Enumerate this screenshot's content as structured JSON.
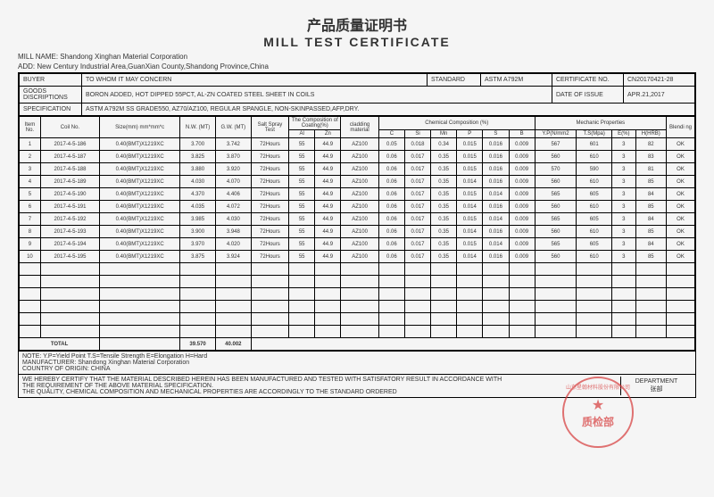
{
  "title_cn": "产品质量证明书",
  "title_en": "MILL TEST CERTIFICATE",
  "mill_name_label": "MILL NAME:",
  "mill_name": "Shandong Xinghan Material Corporation",
  "add_label": "ADD:",
  "address": "New Century Industrial Area,GuanXian County,Shandong Province,China",
  "header": {
    "buyer_label": "BUYER",
    "buyer": "TO WHOM IT MAY CONCERN",
    "standard_label": "STANDARD",
    "standard": "ASTM A792M",
    "cert_no_label": "CERTIFICATE NO.",
    "cert_no": "CN20170421-28",
    "goods_label": "GOODS DISCRIPTIONS",
    "goods": "BORON ADDED, HOT DIPPED 55PCT, AL-ZN COATED STEEL SHEET IN COILS",
    "date_label": "DATE OF ISSUE",
    "date": "APR.21,2017",
    "spec_label": "SPECIFICATION",
    "spec": "ASTM A792M SS GRADE550, AZ70/AZ100, REGULAR SPANGLE, NON-SKINPASSED,AFP,DRY."
  },
  "columns": {
    "item_no": "Item No.",
    "coil_no": "Coil No.",
    "size": "Size(mm) mm*mm*c",
    "nw": "N.W. (MT)",
    "gw": "G.W. (MT)",
    "salt": "Salt Spray Test",
    "comp_coating": "The Composition of Coating(%)",
    "al": "Al",
    "zn": "Zn",
    "cladding": "cladding material",
    "chem": "Chemical Composition (%)",
    "c": "C",
    "si": "Si",
    "mn": "Mn",
    "p": "P",
    "s": "S",
    "b": "B",
    "mech": "Mechanic Properties",
    "yp": "Y.P(N/mm2",
    "ts": "T.S(Mpa)",
    "e": "E(%)",
    "h": "H(HRB)",
    "blend": "Blendi ng"
  },
  "rows": [
    {
      "n": "1",
      "coil": "2017-4-5-186",
      "size": "0.40(BMT)X1219XC",
      "nw": "3.700",
      "gw": "3.742",
      "salt": "72Hours",
      "al": "55",
      "zn": "44.9",
      "clad": "AZ100",
      "c": "0.05",
      "si": "0.018",
      "mn": "0.34",
      "p": "0.015",
      "s": "0.016",
      "b": "0.009",
      "yp": "567",
      "ts": "601",
      "e": "3",
      "h": "82",
      "bl": "OK"
    },
    {
      "n": "2",
      "coil": "2017-4-5-187",
      "size": "0.40(BMT)X1219XC",
      "nw": "3.825",
      "gw": "3.870",
      "salt": "72Hours",
      "al": "55",
      "zn": "44.9",
      "clad": "AZ100",
      "c": "0.06",
      "si": "0.017",
      "mn": "0.35",
      "p": "0.015",
      "s": "0.016",
      "b": "0.009",
      "yp": "560",
      "ts": "610",
      "e": "3",
      "h": "83",
      "bl": "OK"
    },
    {
      "n": "3",
      "coil": "2017-4-5-188",
      "size": "0.40(BMT)X1219XC",
      "nw": "3.880",
      "gw": "3.920",
      "salt": "72Hours",
      "al": "55",
      "zn": "44.9",
      "clad": "AZ100",
      "c": "0.06",
      "si": "0.017",
      "mn": "0.35",
      "p": "0.015",
      "s": "0.016",
      "b": "0.009",
      "yp": "570",
      "ts": "590",
      "e": "3",
      "h": "81",
      "bl": "OK"
    },
    {
      "n": "4",
      "coil": "2017-4-5-189",
      "size": "0.40(BMT)X1219XC",
      "nw": "4.030",
      "gw": "4.070",
      "salt": "72Hours",
      "al": "55",
      "zn": "44.9",
      "clad": "AZ100",
      "c": "0.06",
      "si": "0.017",
      "mn": "0.35",
      "p": "0.014",
      "s": "0.016",
      "b": "0.009",
      "yp": "560",
      "ts": "610",
      "e": "3",
      "h": "85",
      "bl": "OK"
    },
    {
      "n": "5",
      "coil": "2017-4-5-190",
      "size": "0.40(BMT)X1219XC",
      "nw": "4.370",
      "gw": "4.406",
      "salt": "72Hours",
      "al": "55",
      "zn": "44.9",
      "clad": "AZ100",
      "c": "0.06",
      "si": "0.017",
      "mn": "0.35",
      "p": "0.015",
      "s": "0.014",
      "b": "0.009",
      "yp": "565",
      "ts": "605",
      "e": "3",
      "h": "84",
      "bl": "OK"
    },
    {
      "n": "6",
      "coil": "2017-4-5-191",
      "size": "0.40(BMT)X1219XC",
      "nw": "4.035",
      "gw": "4.072",
      "salt": "72Hours",
      "al": "55",
      "zn": "44.9",
      "clad": "AZ100",
      "c": "0.06",
      "si": "0.017",
      "mn": "0.35",
      "p": "0.014",
      "s": "0.016",
      "b": "0.009",
      "yp": "560",
      "ts": "610",
      "e": "3",
      "h": "85",
      "bl": "OK"
    },
    {
      "n": "7",
      "coil": "2017-4-5-192",
      "size": "0.40(BMT)X1219XC",
      "nw": "3.985",
      "gw": "4.030",
      "salt": "72Hours",
      "al": "55",
      "zn": "44.9",
      "clad": "AZ100",
      "c": "0.06",
      "si": "0.017",
      "mn": "0.35",
      "p": "0.015",
      "s": "0.014",
      "b": "0.009",
      "yp": "565",
      "ts": "605",
      "e": "3",
      "h": "84",
      "bl": "OK"
    },
    {
      "n": "8",
      "coil": "2017-4-5-193",
      "size": "0.40(BMT)X1219XC",
      "nw": "3.900",
      "gw": "3.948",
      "salt": "72Hours",
      "al": "55",
      "zn": "44.9",
      "clad": "AZ100",
      "c": "0.06",
      "si": "0.017",
      "mn": "0.35",
      "p": "0.014",
      "s": "0.016",
      "b": "0.009",
      "yp": "560",
      "ts": "610",
      "e": "3",
      "h": "85",
      "bl": "OK"
    },
    {
      "n": "9",
      "coil": "2017-4-5-194",
      "size": "0.40(BMT)X1219XC",
      "nw": "3.970",
      "gw": "4.020",
      "salt": "72Hours",
      "al": "55",
      "zn": "44.9",
      "clad": "AZ100",
      "c": "0.06",
      "si": "0.017",
      "mn": "0.35",
      "p": "0.015",
      "s": "0.014",
      "b": "0.009",
      "yp": "565",
      "ts": "605",
      "e": "3",
      "h": "84",
      "bl": "OK"
    },
    {
      "n": "10",
      "coil": "2017-4-5-195",
      "size": "0.40(BMT)X1219XC",
      "nw": "3.875",
      "gw": "3.924",
      "salt": "72Hours",
      "al": "55",
      "zn": "44.9",
      "clad": "AZ100",
      "c": "0.06",
      "si": "0.017",
      "mn": "0.35",
      "p": "0.014",
      "s": "0.016",
      "b": "0.009",
      "yp": "560",
      "ts": "610",
      "e": "3",
      "h": "85",
      "bl": "OK"
    }
  ],
  "empty_rows": 6,
  "total": {
    "label": "TOTAL",
    "nw": "39.570",
    "gw": "40.002"
  },
  "notes": {
    "line1": "NOTE: Y.P=Yield Point   T.S=Tensile Strength   E=Elongation   H=Hard",
    "line2": "MANUFACTURER: Shandong Xinghan Material Corporation",
    "line3": "COUNTRY OF ORIGIN: CHINA"
  },
  "certify": {
    "l1": "WE HEREBY CERTIFY THAT THE MATERIAL DESCRIBED HEREIN HAS BEEN MANUFACTURED AND TESTED WITH SATISFATORY RESULT IN ACCORDANCE WITH",
    "l2": "THE REQUIREMENT OF THE ABOVE MATERIAL SPECIFICATION.",
    "l3": "THE QUALITY, CHEMICAL COMPOSITION AND MECHANICAL PROPERTIES ARE ACCORDINGLY TO THE STANDARD ORDERED",
    "dept_label": "DEPARTMENT",
    "dept_name": "张部"
  },
  "stamp": {
    "arc": "山东星翰材料股份有限公司",
    "txt": "质检部"
  },
  "colors": {
    "border": "#000000",
    "text": "#333333",
    "stamp": "#d63a3a",
    "bg": "#f5f5f5"
  }
}
